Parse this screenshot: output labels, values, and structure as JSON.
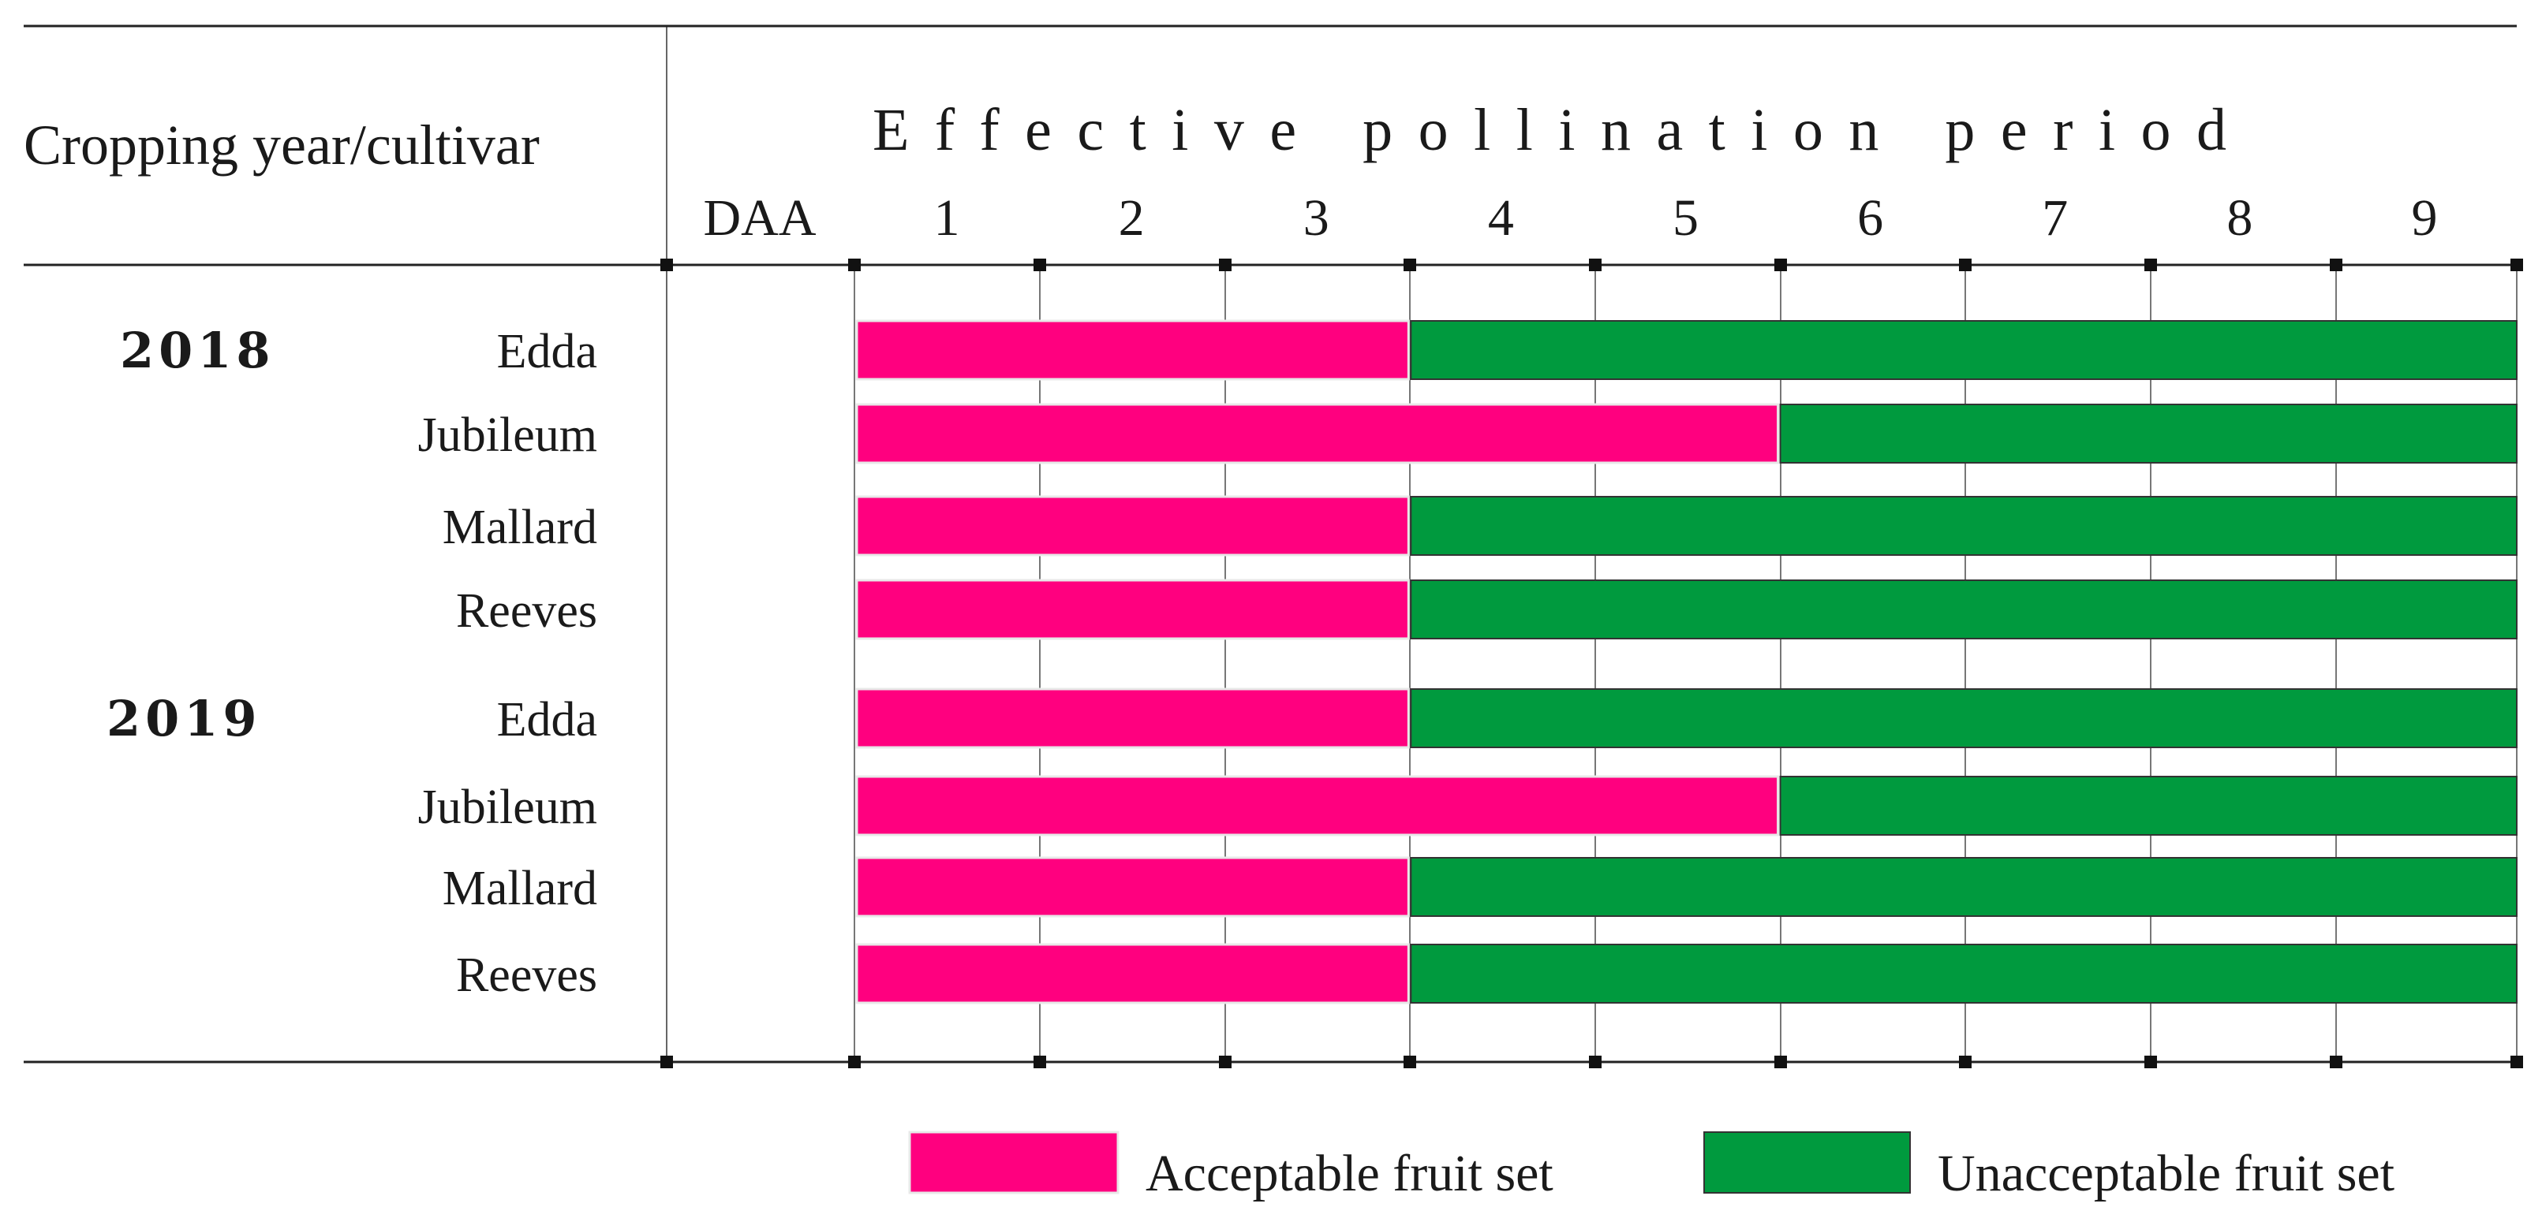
{
  "chart_data": {
    "type": "bar",
    "orientation": "horizontal-stacked",
    "title": "Effective pollination period",
    "header_label": "Cropping year/cultivar",
    "axis_unit_label": "DAA",
    "x_ticks": [
      "1",
      "2",
      "3",
      "4",
      "5",
      "6",
      "7",
      "8",
      "9"
    ],
    "xlim": [
      0.5,
      9.5
    ],
    "groups": [
      {
        "year": "2018",
        "rows": [
          {
            "cultivar": "Edda",
            "acceptable_until": 3
          },
          {
            "cultivar": "Jubileum",
            "acceptable_until": 5
          },
          {
            "cultivar": "Mallard",
            "acceptable_until": 3
          },
          {
            "cultivar": "Reeves",
            "acceptable_until": 3
          }
        ]
      },
      {
        "year": "2019",
        "rows": [
          {
            "cultivar": "Edda",
            "acceptable_until": 3
          },
          {
            "cultivar": "Jubileum",
            "acceptable_until": 5
          },
          {
            "cultivar": "Mallard",
            "acceptable_until": 3
          },
          {
            "cultivar": "Reeves",
            "acceptable_until": 3
          }
        ]
      }
    ],
    "series": [
      {
        "name": "Acceptable fruit set",
        "color": "#ff007f"
      },
      {
        "name": "Unacceptable fruit set",
        "color": "#009a3e"
      }
    ],
    "grid": true,
    "legend": "bottom"
  }
}
